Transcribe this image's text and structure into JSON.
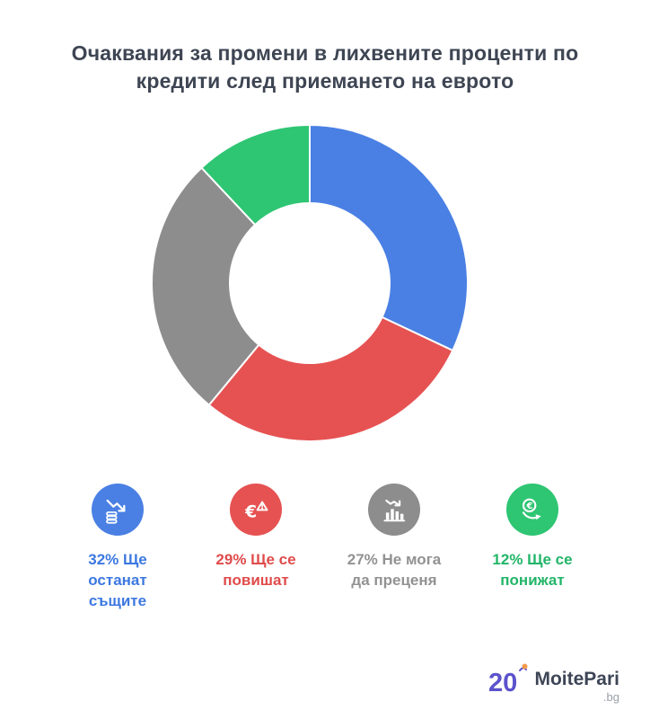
{
  "title": "Очаквания за промени в лихвените проценти по\nкредити след приемането на еврото",
  "chart_data": {
    "type": "pie",
    "subtype": "donut",
    "title": "Очаквания за промени в лихвените проценти по кредити след приемането на еврото",
    "categories": [
      "Ще останат същите",
      "Ще се повишат",
      "Не мога да преценя",
      "Ще се понижат"
    ],
    "values": [
      32,
      29,
      27,
      12
    ],
    "unit": "%",
    "colors": [
      "#4a80e4",
      "#e65252",
      "#8d8d8d",
      "#2ec573"
    ],
    "start_angle_deg": -90,
    "direction": "clockwise",
    "legend_position": "bottom"
  },
  "legend": {
    "items": [
      {
        "label": "32% Ще\nостанат\nсъщите",
        "percent": 32,
        "text_color": "#3c78e0",
        "circle_color": "#4a80e4",
        "icon": "coins-decline-icon"
      },
      {
        "label": "29% Ще се\nповишат",
        "percent": 29,
        "text_color": "#e04b4b",
        "circle_color": "#e65252",
        "icon": "euro-warning-icon"
      },
      {
        "label": "27% Не мога\nда преценя",
        "percent": 27,
        "text_color": "#929292",
        "circle_color": "#8d8d8d",
        "icon": "bar-chart-decline-icon"
      },
      {
        "label": "12% Ще се\nпонижат",
        "percent": 12,
        "text_color": "#22b568",
        "circle_color": "#2ec573",
        "icon": "euro-decline-icon"
      }
    ]
  },
  "logo": {
    "mark": "20",
    "brand": "MoitePari",
    "tld": ".bg",
    "mark_color": "#5b52cc",
    "accent_color": "#f2994a"
  }
}
